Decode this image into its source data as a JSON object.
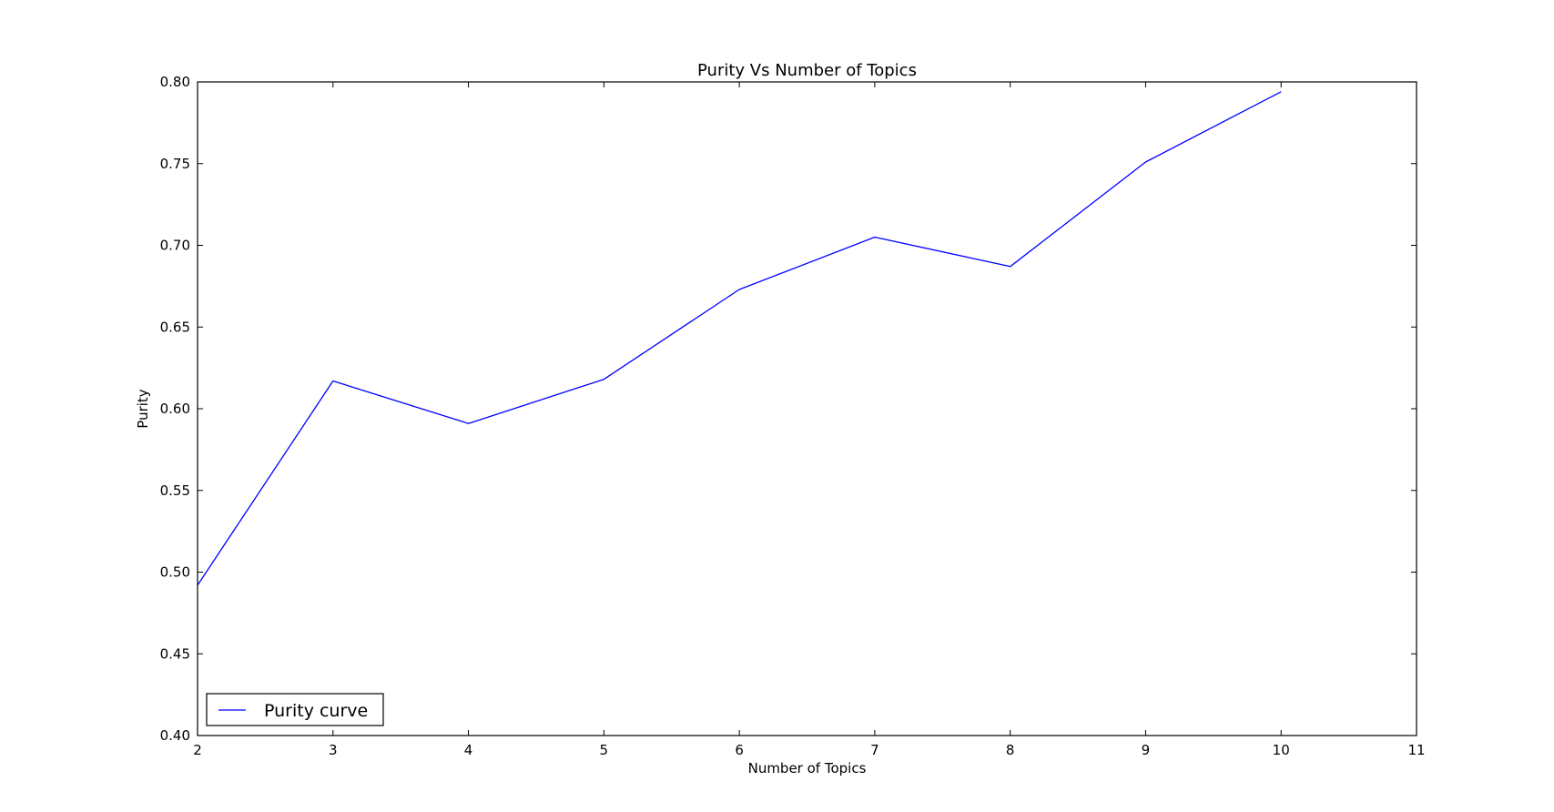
{
  "chart_data": {
    "type": "line",
    "title": "Purity Vs Number of Topics",
    "xlabel": "Number of Topics",
    "ylabel": "Purity",
    "xlim": [
      2,
      11
    ],
    "ylim": [
      0.4,
      0.8
    ],
    "xticks": [
      "2",
      "3",
      "4",
      "5",
      "6",
      "7",
      "8",
      "9",
      "10",
      "11"
    ],
    "yticks": [
      "0.40",
      "0.45",
      "0.50",
      "0.55",
      "0.60",
      "0.65",
      "0.70",
      "0.75",
      "0.80"
    ],
    "grid": false,
    "legend_position": "lower-left",
    "series": [
      {
        "name": "Purity curve",
        "color": "#0000ff",
        "x": [
          2,
          3,
          4,
          5,
          6,
          7,
          8,
          9,
          10
        ],
        "y": [
          0.492,
          0.617,
          0.591,
          0.618,
          0.673,
          0.705,
          0.687,
          0.751,
          0.794
        ]
      }
    ]
  }
}
